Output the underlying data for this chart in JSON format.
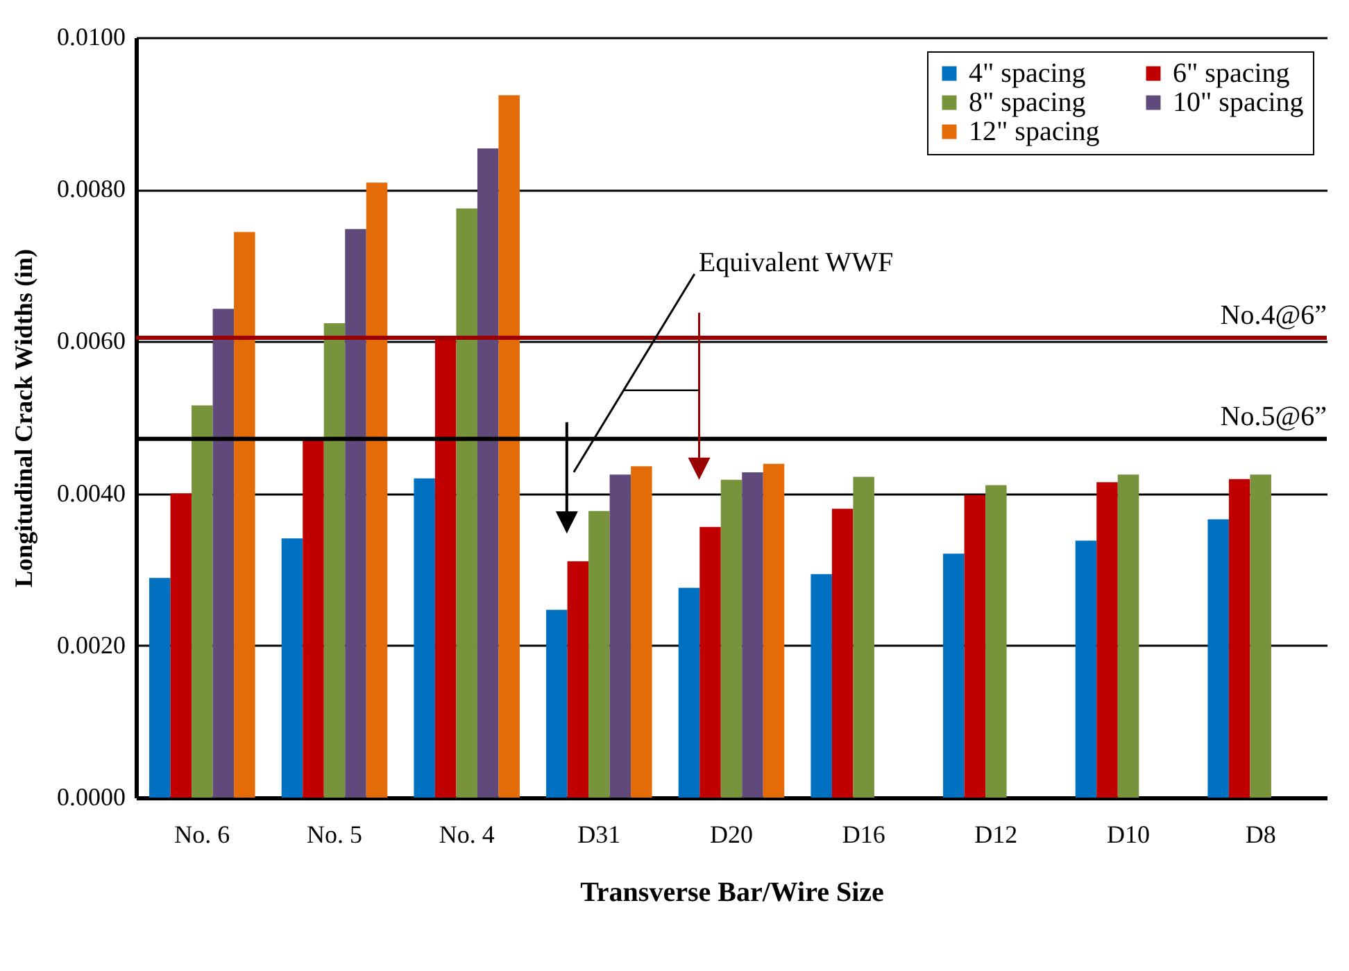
{
  "chart_data": {
    "type": "bar",
    "xlabel": "Transverse Bar/Wire Size",
    "ylabel": "Longitudinal Crack Widths (in)",
    "categories": [
      "No. 6",
      "No. 5",
      "No. 4",
      "D31",
      "D20",
      "D16",
      "D12",
      "D10",
      "D8"
    ],
    "series": [
      {
        "name": "4\" spacing",
        "color": "#0070c0",
        "values": [
          0.00289,
          0.00341,
          0.0042,
          0.00247,
          0.00276,
          0.00294,
          0.00321,
          0.00338,
          0.00366
        ]
      },
      {
        "name": "6\" spacing",
        "color": "#c00000",
        "values": [
          0.004,
          0.0047,
          0.00605,
          0.00311,
          0.00356,
          0.0038,
          0.00398,
          0.00415,
          0.00419
        ]
      },
      {
        "name": "8\" spacing",
        "color": "#77933c",
        "values": [
          0.00516,
          0.00624,
          0.00775,
          0.00377,
          0.00418,
          0.00422,
          0.00411,
          0.00425,
          0.00425
        ]
      },
      {
        "name": "10\" spacing",
        "color": "#604a7b",
        "values": [
          0.00643,
          0.00748,
          0.00854,
          0.00425,
          0.00428,
          null,
          null,
          null,
          null
        ]
      },
      {
        "name": "12\" spacing",
        "color": "#e36c09",
        "values": [
          0.00744,
          0.00809,
          0.00924,
          0.00436,
          0.00439,
          null,
          null,
          null,
          null
        ]
      }
    ],
    "ylim": [
      0,
      0.01
    ],
    "yticks": [
      {
        "value": 0,
        "label": "0.0000"
      },
      {
        "value": 0.002,
        "label": "0.0020"
      },
      {
        "value": 0.004,
        "label": "0.0040"
      },
      {
        "value": 0.006,
        "label": "0.0060"
      },
      {
        "value": 0.008,
        "label": "0.0080"
      },
      {
        "value": 0.01,
        "label": "0.0100"
      }
    ],
    "grid": "y",
    "legend": "top right",
    "ref_lines": [
      {
        "axis": "y",
        "value": 0.00605,
        "label": "No.4@6”",
        "color": "#990000"
      },
      {
        "axis": "y",
        "value": 0.00472,
        "label": "No.5@6”",
        "color": "#000000"
      }
    ],
    "annotations": [
      "Equivalent WWF"
    ]
  }
}
